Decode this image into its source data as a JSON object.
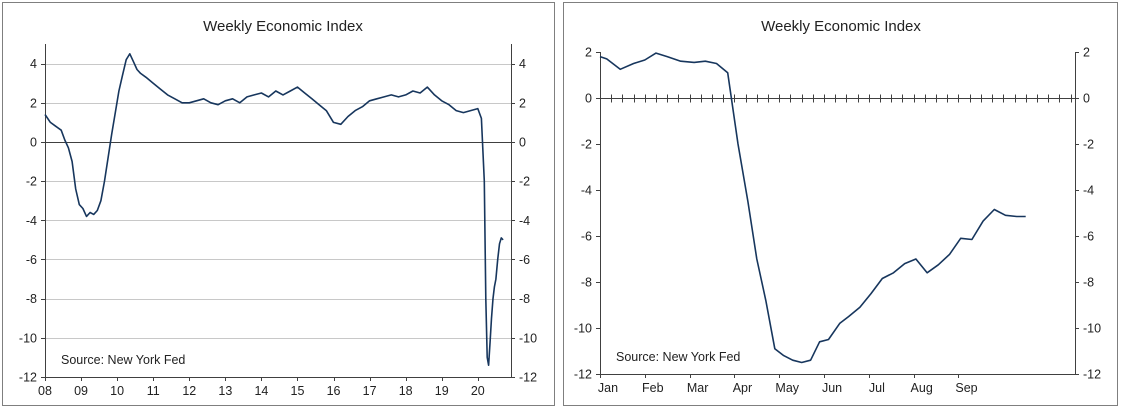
{
  "chart_data": [
    {
      "type": "line",
      "title": "Weekly Economic Index",
      "annotation": "Source: New York Fed",
      "ylim": [
        -12,
        5
      ],
      "xlim": [
        2008,
        2020.92
      ],
      "yticks": [
        4,
        2,
        0,
        -2,
        -4,
        -6,
        -8,
        -10,
        -12
      ],
      "grid": true,
      "secondary_y_axis": true,
      "x_tick_labels": [
        "08",
        "09",
        "10",
        "11",
        "12",
        "13",
        "14",
        "15",
        "16",
        "17",
        "18",
        "19",
        "20"
      ],
      "series": [
        {
          "color": "#17365d",
          "x": [
            2008.0,
            2008.15,
            2008.3,
            2008.45,
            2008.55,
            2008.65,
            2008.75,
            2008.85,
            2008.95,
            2009.05,
            2009.15,
            2009.25,
            2009.35,
            2009.45,
            2009.55,
            2009.65,
            2009.75,
            2009.85,
            2009.95,
            2010.05,
            2010.15,
            2010.25,
            2010.35,
            2010.45,
            2010.55,
            2010.65,
            2010.8,
            2011.0,
            2011.2,
            2011.4,
            2011.6,
            2011.8,
            2012.0,
            2012.2,
            2012.4,
            2012.6,
            2012.8,
            2013.0,
            2013.2,
            2013.4,
            2013.6,
            2013.8,
            2014.0,
            2014.2,
            2014.4,
            2014.6,
            2014.8,
            2015.0,
            2015.2,
            2015.4,
            2015.6,
            2015.8,
            2016.0,
            2016.2,
            2016.4,
            2016.6,
            2016.8,
            2017.0,
            2017.2,
            2017.4,
            2017.6,
            2017.8,
            2018.0,
            2018.2,
            2018.4,
            2018.6,
            2018.8,
            2019.0,
            2019.2,
            2019.4,
            2019.6,
            2019.8,
            2020.0,
            2020.1,
            2020.18,
            2020.22,
            2020.26,
            2020.3,
            2020.34,
            2020.38,
            2020.42,
            2020.46,
            2020.5,
            2020.55,
            2020.6,
            2020.65,
            2020.7
          ],
          "values": [
            1.4,
            1.0,
            0.8,
            0.6,
            0.1,
            -0.3,
            -1.0,
            -2.4,
            -3.2,
            -3.4,
            -3.8,
            -3.6,
            -3.7,
            -3.5,
            -3.0,
            -2.0,
            -0.8,
            0.4,
            1.5,
            2.6,
            3.4,
            4.2,
            4.5,
            4.1,
            3.7,
            3.5,
            3.3,
            3.0,
            2.7,
            2.4,
            2.2,
            2.0,
            2.0,
            2.1,
            2.2,
            2.0,
            1.9,
            2.1,
            2.2,
            2.0,
            2.3,
            2.4,
            2.5,
            2.3,
            2.6,
            2.4,
            2.6,
            2.8,
            2.5,
            2.2,
            1.9,
            1.6,
            1.0,
            0.9,
            1.3,
            1.6,
            1.8,
            2.1,
            2.2,
            2.3,
            2.4,
            2.3,
            2.4,
            2.6,
            2.5,
            2.8,
            2.4,
            2.1,
            1.9,
            1.6,
            1.5,
            1.6,
            1.7,
            1.2,
            -2.0,
            -8.0,
            -11.0,
            -11.4,
            -10.2,
            -9.0,
            -8.0,
            -7.4,
            -7.0,
            -6.0,
            -5.2,
            -4.9,
            -5.0
          ]
        }
      ]
    },
    {
      "type": "line",
      "title": "Weekly Economic Index",
      "annotation": "Source: New York Fed",
      "ylim": [
        -12,
        2
      ],
      "xlim": [
        0,
        10.6
      ],
      "yticks": [
        2,
        0,
        -2,
        -4,
        -6,
        -8,
        -10,
        -12
      ],
      "grid": false,
      "secondary_y_axis": true,
      "x_tick_labels": [
        "Jan",
        "Feb",
        "Mar",
        "Apr",
        "May",
        "Jun",
        "Jul",
        "Aug",
        "Sep"
      ],
      "series": [
        {
          "color": "#17365d",
          "x": [
            0.0,
            0.15,
            0.45,
            0.75,
            1.0,
            1.25,
            1.5,
            1.8,
            2.1,
            2.35,
            2.6,
            2.85,
            3.08,
            3.3,
            3.5,
            3.7,
            3.9,
            4.1,
            4.3,
            4.5,
            4.7,
            4.9,
            5.1,
            5.35,
            5.55,
            5.8,
            6.05,
            6.3,
            6.55,
            6.8,
            7.05,
            7.3,
            7.55,
            7.8,
            8.05,
            8.3,
            8.55,
            8.8,
            9.05,
            9.3,
            9.5
          ],
          "values": [
            1.8,
            1.7,
            1.25,
            1.5,
            1.65,
            1.95,
            1.8,
            1.6,
            1.55,
            1.6,
            1.5,
            1.1,
            -2.0,
            -4.5,
            -7.0,
            -8.8,
            -10.9,
            -11.2,
            -11.4,
            -11.5,
            -11.4,
            -10.6,
            -10.5,
            -9.8,
            -9.5,
            -9.1,
            -8.5,
            -7.85,
            -7.6,
            -7.2,
            -7.0,
            -7.6,
            -7.25,
            -6.8,
            -6.1,
            -6.15,
            -5.35,
            -4.85,
            -5.1,
            -5.15,
            -5.15
          ]
        }
      ]
    }
  ]
}
